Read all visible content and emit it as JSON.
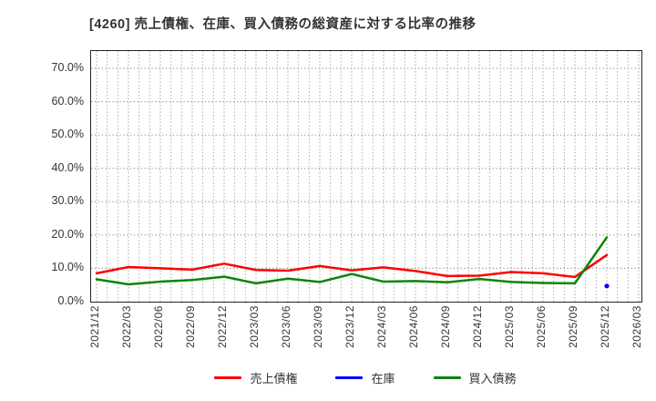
{
  "title": "[4260]  売上債権、在庫、買入債務の総資産に対する比率の推移",
  "axes": {
    "y_tick_labels": [
      "0.0%",
      "10.0%",
      "20.0%",
      "30.0%",
      "40.0%",
      "50.0%",
      "60.0%",
      "70.0%"
    ],
    "x_tick_labels": [
      "2021/12",
      "2022/03",
      "2022/06",
      "2022/09",
      "2022/12",
      "2023/03",
      "2023/06",
      "2023/09",
      "2023/12",
      "2024/03",
      "2024/06",
      "2024/09",
      "2024/12",
      "2025/03",
      "2025/06",
      "2025/09",
      "2025/12",
      "2026/03"
    ]
  },
  "colors": {
    "sales_receivables": "#ff0000",
    "inventory": "#0000ff",
    "payables": "#0a850a",
    "grid": "#9a9a9a",
    "border": "#262626",
    "text": "#333333"
  },
  "chart_data": {
    "type": "line",
    "title": "[4260]  売上債権、在庫、買入債務の総資産に対する比率の推移",
    "xlabel": "",
    "ylabel": "",
    "ylim": [
      0,
      75.2
    ],
    "ytick_step_percent": 10,
    "grid": "dotted, horizontal every 10%, vertical monthly",
    "legend_position": "bottom",
    "categories": [
      "2021/12",
      "2022/03",
      "2022/06",
      "2022/09",
      "2022/12",
      "2023/03",
      "2023/06",
      "2023/09",
      "2023/12",
      "2024/03",
      "2024/06",
      "2024/09",
      "2024/12",
      "2025/03",
      "2025/06",
      "2025/09",
      "2025/12",
      "2026/03"
    ],
    "series": [
      {
        "name": "売上債権",
        "color": "#ff0000",
        "values": [
          8.5,
          10.4,
          10.0,
          9.6,
          11.4,
          9.5,
          9.3,
          10.7,
          9.4,
          10.3,
          9.2,
          7.7,
          7.8,
          8.9,
          8.5,
          7.4,
          14.0,
          null
        ]
      },
      {
        "name": "在庫",
        "color": "#0000ff",
        "values": [
          null,
          null,
          null,
          null,
          null,
          null,
          null,
          null,
          null,
          null,
          null,
          null,
          null,
          null,
          null,
          null,
          4.7,
          null
        ]
      },
      {
        "name": "買入債務",
        "color": "#0a850a",
        "values": [
          6.7,
          5.2,
          6.0,
          6.5,
          7.5,
          5.5,
          6.9,
          5.9,
          8.3,
          6.0,
          6.2,
          5.8,
          6.8,
          5.9,
          5.6,
          5.5,
          19.3,
          null
        ]
      }
    ]
  }
}
